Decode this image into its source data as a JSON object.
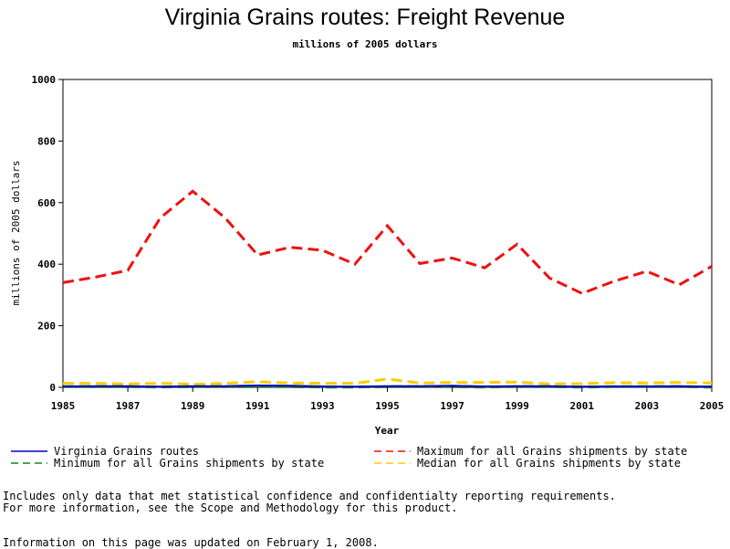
{
  "chart_data": {
    "type": "line",
    "title": "Virginia Grains routes: Freight Revenue",
    "subtitle": "millions of 2005 dollars",
    "xlabel": "Year",
    "ylabel": "millions of 2005 dollars",
    "xlim": [
      1985,
      2005
    ],
    "ylim": [
      0,
      1000
    ],
    "x_ticks": [
      "1985",
      "1987",
      "1989",
      "1991",
      "1993",
      "1995",
      "1997",
      "1999",
      "2001",
      "2003",
      "2005"
    ],
    "y_ticks": [
      "0",
      "200",
      "400",
      "600",
      "800",
      "1000"
    ],
    "grid": false,
    "legend_position": "bottom",
    "x": [
      1985,
      1986,
      1987,
      1988,
      1989,
      1990,
      1991,
      1992,
      1993,
      1994,
      1995,
      1996,
      1997,
      1998,
      1999,
      2000,
      2001,
      2002,
      2003,
      2004,
      2005
    ],
    "series": [
      {
        "name": "Virginia Grains routes",
        "color": "#0000cc",
        "dash": "solid",
        "values": [
          3,
          4,
          4,
          2,
          4,
          4,
          6,
          5,
          3,
          2,
          4,
          4,
          5,
          3,
          4,
          4,
          2,
          3,
          3,
          4,
          2
        ]
      },
      {
        "name": "Maximum for all Grains shipments by state",
        "color": "#ee1111",
        "dash": "dashed",
        "values": [
          340,
          358,
          380,
          550,
          637,
          550,
          430,
          455,
          445,
          400,
          525,
          402,
          420,
          388,
          465,
          355,
          305,
          345,
          377,
          333,
          393
        ]
      },
      {
        "name": "Minimum for all Grains shipments by state",
        "color": "#118811",
        "dash": "dashed",
        "values": [
          2,
          2,
          2,
          1,
          2,
          2,
          2,
          2,
          1,
          1,
          2,
          2,
          2,
          1,
          2,
          2,
          1,
          2,
          2,
          2,
          1
        ]
      },
      {
        "name": "Median for all Grains shipments by state",
        "color": "#ffcc00",
        "dash": "dashed",
        "values": [
          13,
          13,
          11,
          13,
          10,
          13,
          18,
          14,
          13,
          13,
          27,
          14,
          16,
          16,
          17,
          11,
          12,
          15,
          14,
          16,
          14
        ]
      }
    ]
  },
  "notes": {
    "line1": "Includes only data that met statistical confidence and confidentialty reporting requirements.",
    "line2": "For more information, see the Scope and Methodology for this product.",
    "updated": "Information on this page was updated on February 1, 2008."
  }
}
